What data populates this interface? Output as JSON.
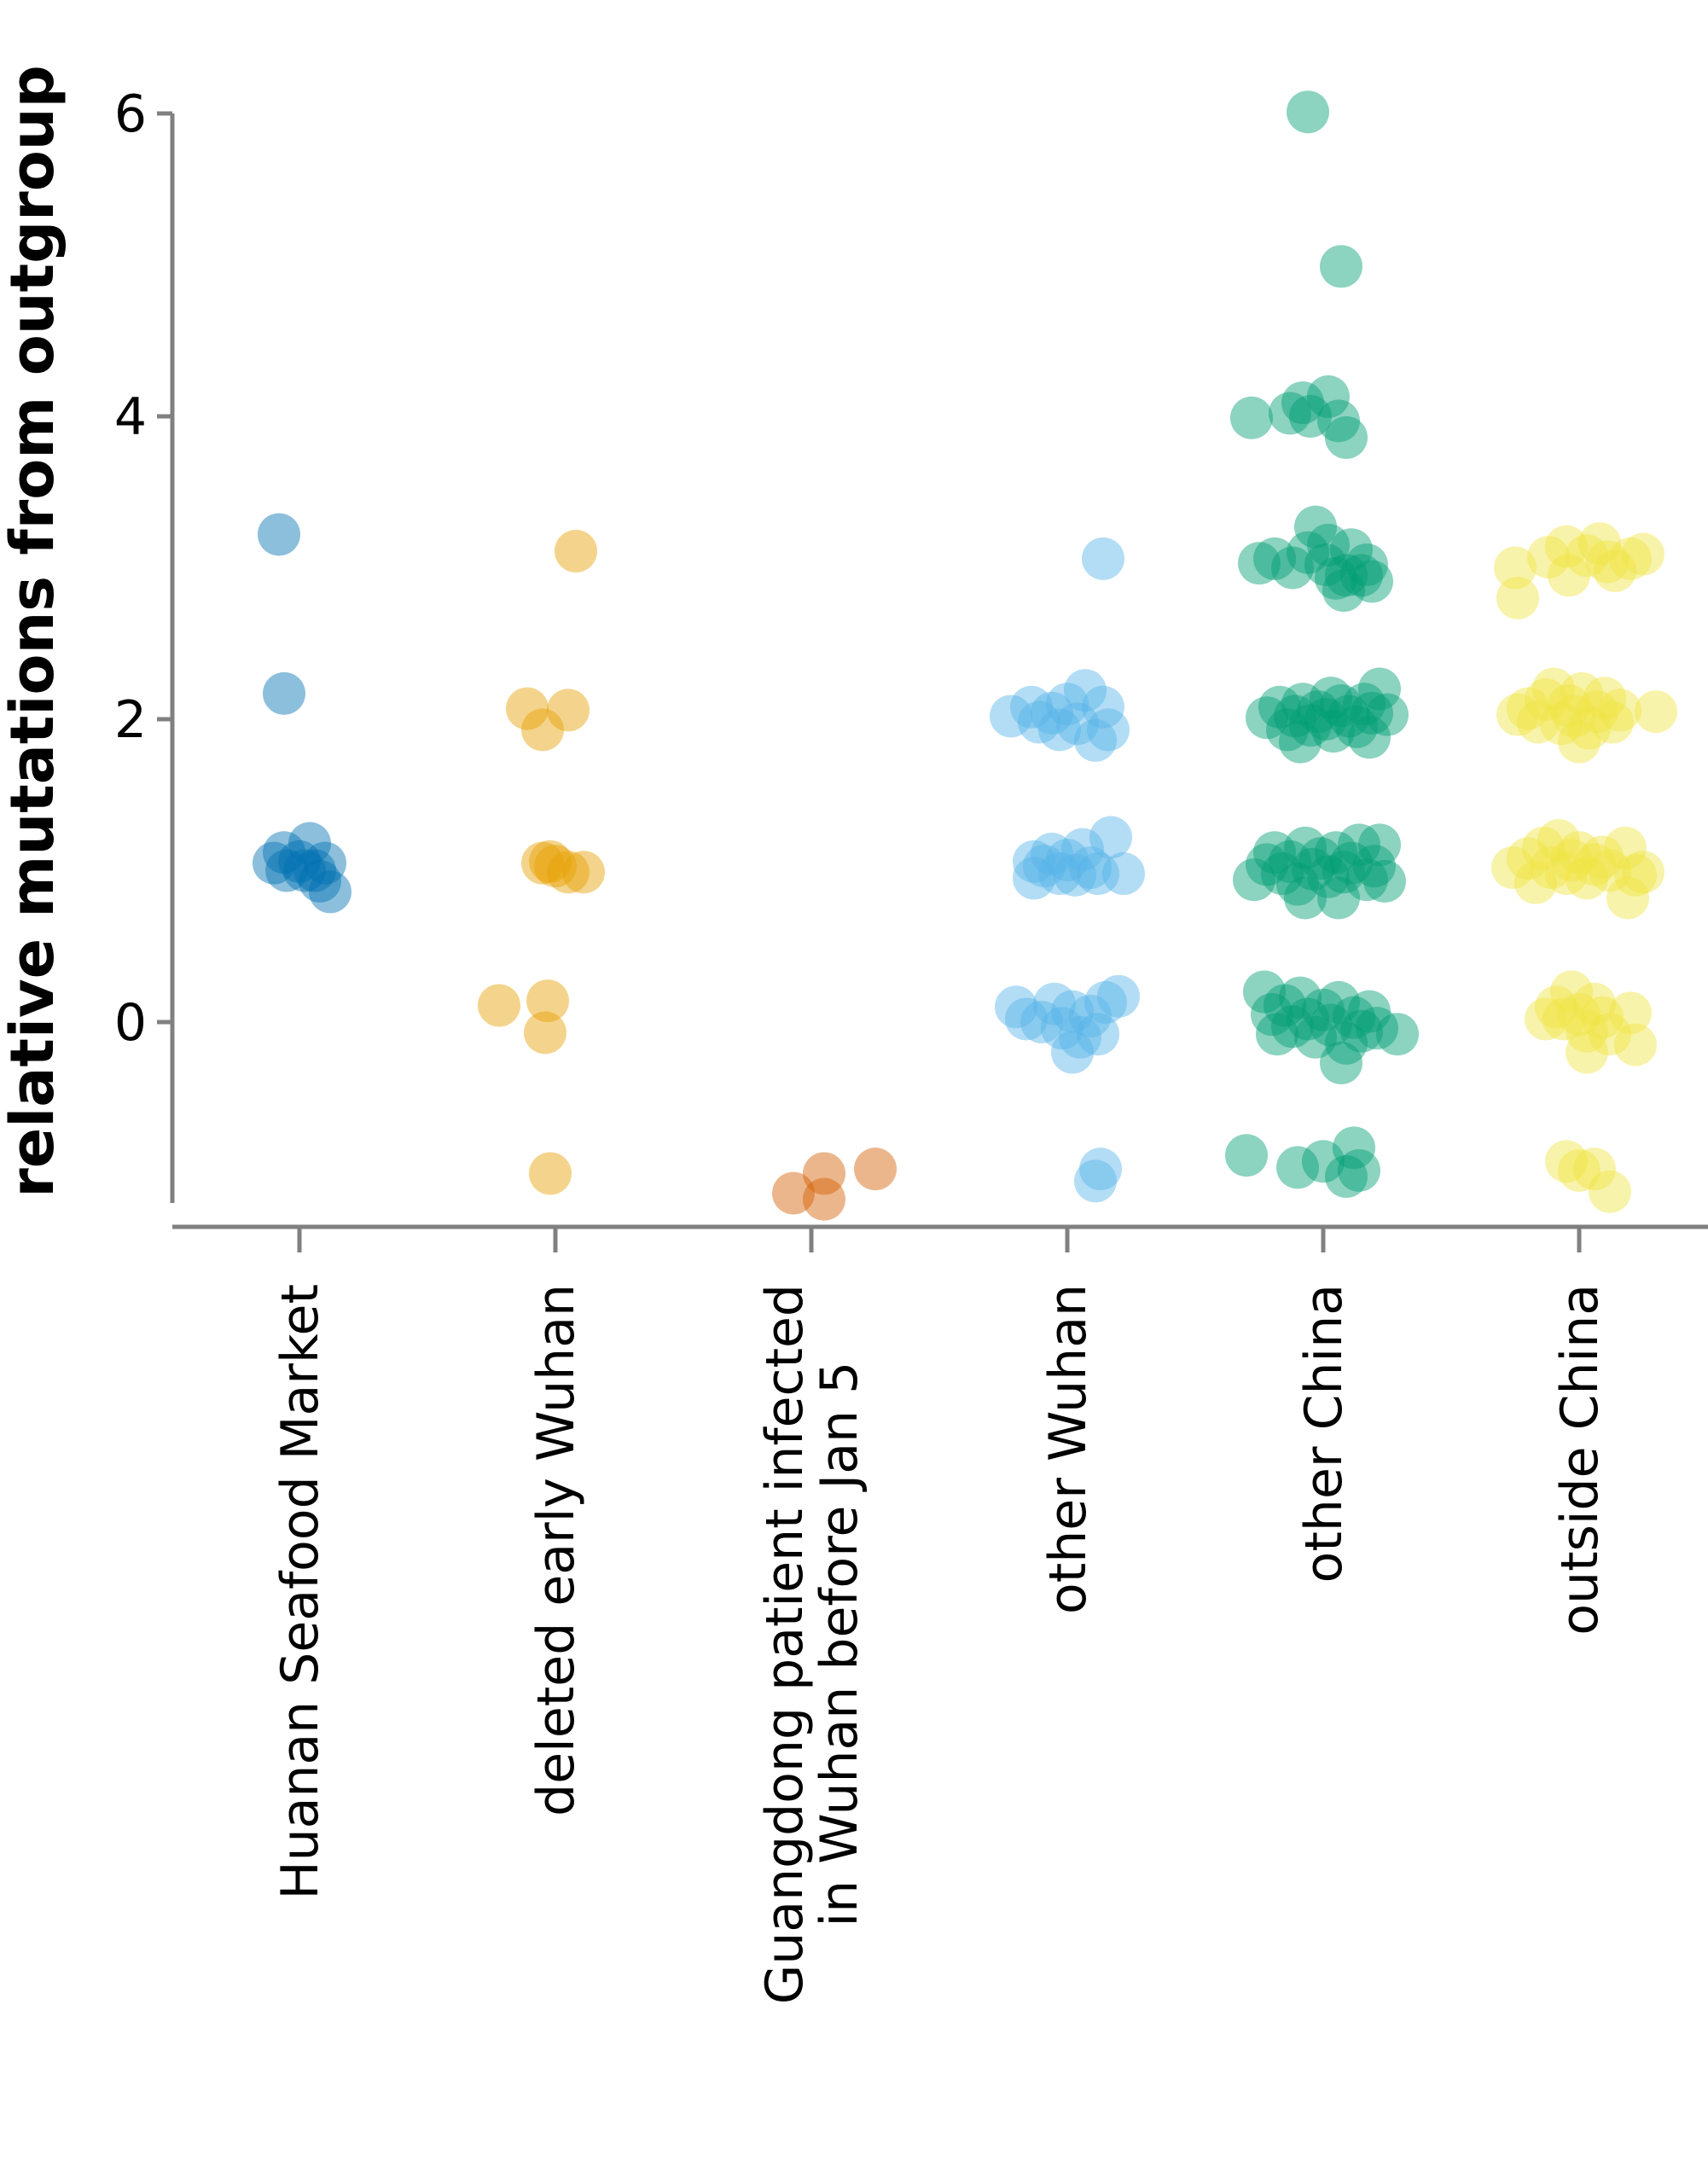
{
  "chart_data": {
    "type": "scatter",
    "title": "",
    "xlabel": "",
    "ylabel": "relative mutations from outgroup",
    "ylim": [
      -1.2,
      6.0
    ],
    "yticks": [
      0,
      2,
      4,
      6
    ],
    "grid": false,
    "legend": "none",
    "categories": [
      "Huanan Seafood Market",
      "deleted early Wuhan",
      "Guangdong patient infected in Wuhan before Jan 5",
      "other Wuhan",
      "other China",
      "outside China"
    ],
    "category_label_lines": [
      [
        "Huanan Seafood Market"
      ],
      [
        "deleted early Wuhan"
      ],
      [
        "Guangdong patient infected",
        "in Wuhan before Jan 5"
      ],
      [
        "other Wuhan"
      ],
      [
        "other China"
      ],
      [
        "outside China"
      ]
    ],
    "series": [
      {
        "category": "Huanan Seafood Market",
        "color": "#0072B2",
        "points": [
          [
            -0.08,
            3.22
          ],
          [
            -0.06,
            2.17
          ],
          [
            -0.1,
            1.05
          ],
          [
            -0.06,
            1.12
          ],
          [
            -0.05,
            1.0
          ],
          [
            0.0,
            1.06
          ],
          [
            0.02,
            1.0
          ],
          [
            0.04,
            1.18
          ],
          [
            0.06,
            1.0
          ],
          [
            0.08,
            0.93
          ],
          [
            0.1,
            1.05
          ],
          [
            0.12,
            0.86
          ]
        ]
      },
      {
        "category": "deleted early Wuhan",
        "color": "#E69F00",
        "points": [
          [
            0.08,
            3.11
          ],
          [
            -0.11,
            2.07
          ],
          [
            -0.05,
            1.93
          ],
          [
            0.05,
            2.06
          ],
          [
            -0.05,
            1.05
          ],
          [
            -0.02,
            1.06
          ],
          [
            0.0,
            1.03
          ],
          [
            0.05,
            0.99
          ],
          [
            0.11,
            0.99
          ],
          [
            -0.22,
            0.11
          ],
          [
            -0.03,
            0.14
          ],
          [
            -0.04,
            -0.07
          ],
          [
            -0.02,
            -1.0
          ]
        ]
      },
      {
        "category": "Guangdong patient infected in Wuhan before Jan 5",
        "color": "#D55E00",
        "points": [
          [
            -0.07,
            -1.13
          ],
          [
            0.05,
            -1.0
          ],
          [
            0.25,
            -0.97
          ],
          [
            0.05,
            -1.17
          ]
        ]
      },
      {
        "category": "other Wuhan",
        "color": "#56B4E9",
        "points": [
          [
            0.14,
            3.06
          ],
          [
            -0.22,
            2.02
          ],
          [
            -0.14,
            2.08
          ],
          [
            -0.11,
            1.98
          ],
          [
            -0.06,
            2.04
          ],
          [
            -0.03,
            1.93
          ],
          [
            0.0,
            2.1
          ],
          [
            0.04,
            1.97
          ],
          [
            0.07,
            2.19
          ],
          [
            0.11,
            1.86
          ],
          [
            0.14,
            2.08
          ],
          [
            0.16,
            1.93
          ],
          [
            -0.13,
            1.06
          ],
          [
            -0.13,
            0.95
          ],
          [
            -0.09,
            1.03
          ],
          [
            -0.06,
            1.11
          ],
          [
            -0.03,
            0.98
          ],
          [
            0.0,
            1.07
          ],
          [
            0.03,
            0.97
          ],
          [
            0.06,
            1.14
          ],
          [
            0.09,
            1.02
          ],
          [
            0.12,
            0.98
          ],
          [
            0.17,
            1.22
          ],
          [
            0.22,
            0.98
          ],
          [
            -0.2,
            0.1
          ],
          [
            -0.16,
            0.02
          ],
          [
            -0.1,
            0.0
          ],
          [
            -0.05,
            0.12
          ],
          [
            -0.02,
            -0.04
          ],
          [
            0.02,
            0.07
          ],
          [
            0.05,
            -0.1
          ],
          [
            0.09,
            0.04
          ],
          [
            0.12,
            -0.08
          ],
          [
            0.15,
            0.13
          ],
          [
            0.2,
            0.17
          ],
          [
            0.02,
            -0.2
          ],
          [
            0.13,
            -0.97
          ],
          [
            0.11,
            -1.05
          ]
        ]
      },
      {
        "category": "other China",
        "color": "#009E73",
        "points": [
          [
            -0.06,
            6.01
          ],
          [
            0.07,
            4.99
          ],
          [
            -0.28,
            3.99
          ],
          [
            -0.13,
            4.02
          ],
          [
            -0.08,
            4.09
          ],
          [
            -0.05,
            4.0
          ],
          [
            0.02,
            4.13
          ],
          [
            0.06,
            3.97
          ],
          [
            0.09,
            3.86
          ],
          [
            -0.25,
            3.03
          ],
          [
            -0.19,
            3.06
          ],
          [
            -0.12,
            3.0
          ],
          [
            -0.06,
            3.1
          ],
          [
            -0.03,
            3.27
          ],
          [
            0.01,
            3.02
          ],
          [
            0.05,
            2.93
          ],
          [
            0.08,
            2.85
          ],
          [
            0.11,
            3.12
          ],
          [
            0.15,
            2.95
          ],
          [
            0.17,
            3.02
          ],
          [
            0.19,
            2.91
          ],
          [
            0.02,
            3.15
          ],
          [
            0.09,
            2.95
          ],
          [
            -0.22,
            2.01
          ],
          [
            -0.17,
            2.08
          ],
          [
            -0.14,
            1.93
          ],
          [
            -0.11,
            2.02
          ],
          [
            -0.08,
            2.1
          ],
          [
            -0.05,
            1.96
          ],
          [
            -0.02,
            2.05
          ],
          [
            0.01,
            2.0
          ],
          [
            0.04,
            1.92
          ],
          [
            0.07,
            2.09
          ],
          [
            0.1,
            2.02
          ],
          [
            0.13,
            1.95
          ],
          [
            0.16,
            2.1
          ],
          [
            0.19,
            2.04
          ],
          [
            0.22,
            2.2
          ],
          [
            0.25,
            2.03
          ],
          [
            -0.09,
            1.85
          ],
          [
            0.03,
            2.14
          ],
          [
            0.18,
            1.88
          ],
          [
            -0.27,
            0.94
          ],
          [
            -0.22,
            1.04
          ],
          [
            -0.19,
            1.12
          ],
          [
            -0.16,
            0.98
          ],
          [
            -0.13,
            1.06
          ],
          [
            -0.1,
            0.91
          ],
          [
            -0.07,
            1.15
          ],
          [
            -0.04,
            1.01
          ],
          [
            -0.01,
            1.08
          ],
          [
            0.02,
            0.96
          ],
          [
            0.05,
            1.12
          ],
          [
            0.08,
            0.99
          ],
          [
            0.11,
            1.05
          ],
          [
            0.14,
            1.17
          ],
          [
            0.17,
            0.94
          ],
          [
            0.2,
            1.03
          ],
          [
            0.22,
            1.17
          ],
          [
            0.24,
            0.93
          ],
          [
            -0.07,
            0.82
          ],
          [
            0.06,
            0.82
          ],
          [
            -0.23,
            0.2
          ],
          [
            -0.2,
            0.05
          ],
          [
            -0.18,
            -0.08
          ],
          [
            -0.15,
            0.11
          ],
          [
            -0.12,
            -0.03
          ],
          [
            -0.09,
            0.16
          ],
          [
            -0.06,
            0.02
          ],
          [
            -0.03,
            -0.1
          ],
          [
            0.0,
            0.08
          ],
          [
            0.03,
            -0.02
          ],
          [
            0.06,
            0.13
          ],
          [
            0.09,
            -0.14
          ],
          [
            0.12,
            0.03
          ],
          [
            0.15,
            -0.06
          ],
          [
            0.18,
            0.07
          ],
          [
            0.21,
            -0.04
          ],
          [
            0.29,
            -0.08
          ],
          [
            0.07,
            -0.27
          ],
          [
            -0.3,
            -0.88
          ],
          [
            -0.1,
            -0.96
          ],
          [
            0.0,
            -0.92
          ],
          [
            0.12,
            -0.83
          ],
          [
            0.09,
            -1.02
          ],
          [
            0.14,
            -0.98
          ]
        ]
      },
      {
        "category": "outside China",
        "color": "#F0E442",
        "points": [
          [
            -0.25,
            3.0
          ],
          [
            -0.24,
            2.8
          ],
          [
            -0.12,
            3.07
          ],
          [
            -0.05,
            3.14
          ],
          [
            -0.04,
            2.95
          ],
          [
            0.03,
            3.08
          ],
          [
            0.08,
            3.16
          ],
          [
            0.11,
            3.04
          ],
          [
            0.14,
            2.98
          ],
          [
            0.2,
            3.06
          ],
          [
            0.25,
            3.09
          ],
          [
            -0.24,
            2.03
          ],
          [
            -0.2,
            2.07
          ],
          [
            -0.16,
            1.98
          ],
          [
            -0.13,
            2.13
          ],
          [
            -0.1,
            2.2
          ],
          [
            -0.07,
            1.97
          ],
          [
            -0.04,
            2.09
          ],
          [
            -0.02,
            2.02
          ],
          [
            0.01,
            2.17
          ],
          [
            0.04,
            1.94
          ],
          [
            0.07,
            2.05
          ],
          [
            0.1,
            2.14
          ],
          [
            0.13,
            1.98
          ],
          [
            0.16,
            2.06
          ],
          [
            0.3,
            2.05
          ],
          [
            0.0,
            1.85
          ],
          [
            -0.26,
            1.02
          ],
          [
            -0.2,
            1.08
          ],
          [
            -0.17,
            0.92
          ],
          [
            -0.14,
            1.15
          ],
          [
            -0.11,
            1.02
          ],
          [
            -0.08,
            1.2
          ],
          [
            -0.05,
            0.98
          ],
          [
            -0.03,
            1.07
          ],
          [
            0.0,
            1.12
          ],
          [
            0.03,
            0.95
          ],
          [
            0.06,
            1.04
          ],
          [
            0.09,
            1.09
          ],
          [
            0.12,
            1.0
          ],
          [
            0.18,
            1.15
          ],
          [
            0.22,
            0.97
          ],
          [
            0.25,
            0.99
          ],
          [
            0.19,
            0.82
          ],
          [
            -0.13,
            0.02
          ],
          [
            -0.09,
            0.1
          ],
          [
            -0.06,
            0.02
          ],
          [
            -0.03,
            0.2
          ],
          [
            0.0,
            0.05
          ],
          [
            0.03,
            -0.06
          ],
          [
            0.06,
            0.12
          ],
          [
            0.09,
            0.03
          ],
          [
            0.12,
            -0.08
          ],
          [
            0.2,
            0.06
          ],
          [
            0.22,
            -0.15
          ],
          [
            0.03,
            -0.2
          ],
          [
            -0.05,
            -0.92
          ],
          [
            0.0,
            -0.98
          ],
          [
            0.06,
            -0.97
          ],
          [
            0.12,
            -1.12
          ]
        ]
      }
    ]
  }
}
